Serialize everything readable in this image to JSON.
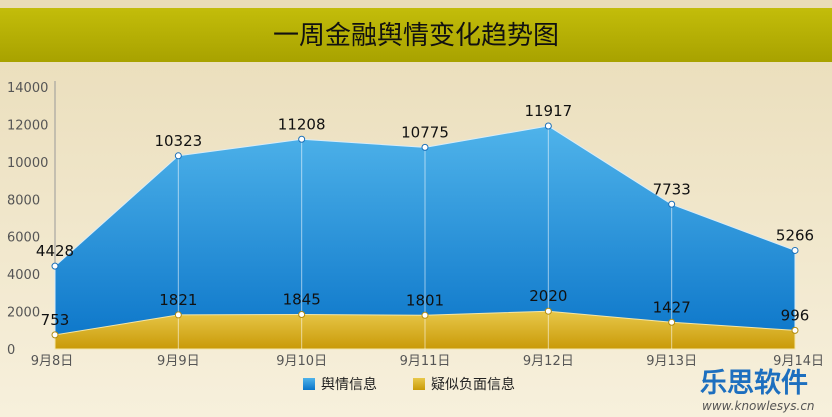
{
  "chart_data": {
    "type": "area",
    "title": "一周金融舆情变化趋势图",
    "categories": [
      "9月8日",
      "9月9日",
      "9月10日",
      "9月11日",
      "9月12日",
      "9月13日",
      "9月14日"
    ],
    "series": [
      {
        "name": "舆情信息",
        "values": [
          4428,
          10323,
          11208,
          10775,
          11917,
          7733,
          5266
        ],
        "color": "#1b8ad8"
      },
      {
        "name": "疑似负面信息",
        "values": [
          753,
          1821,
          1845,
          1801,
          2020,
          1427,
          996
        ],
        "color": "#d6a812"
      }
    ],
    "yticks": [
      0,
      2000,
      4000,
      6000,
      8000,
      10000,
      12000,
      14000
    ],
    "ylim": [
      0,
      14000
    ],
    "xlabel": "",
    "ylabel": "",
    "legend_position": "bottom",
    "grid": false
  },
  "colors": {
    "title_bar": "#b3ad00",
    "background": "#f3ead2"
  },
  "watermark": {
    "text": "乐思软件",
    "url": "www.knowlesys.cn"
  }
}
